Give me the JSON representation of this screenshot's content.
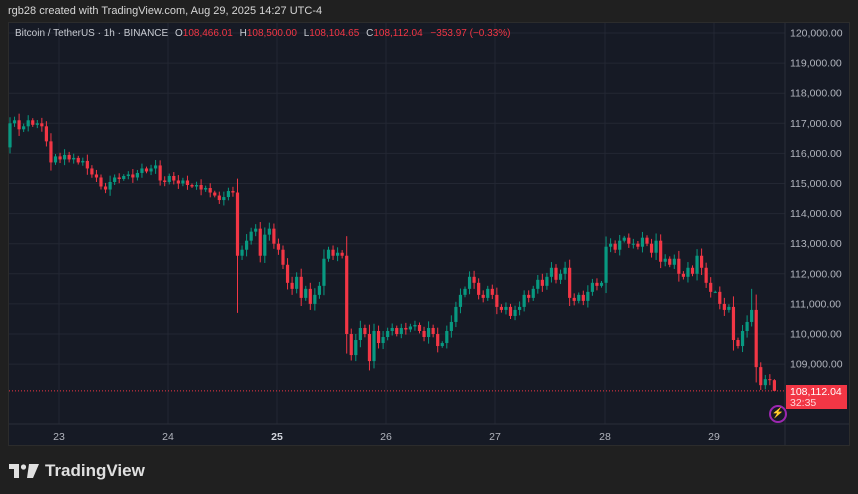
{
  "credit": "rgb28 created with TradingView.com, Aug 29, 2025 14:27 UTC-4",
  "legend": {
    "symbol": "Bitcoin / TetherUS · 1h · BINANCE",
    "o_label": "O",
    "o": "108,466.01",
    "h_label": "H",
    "h": "108,500.00",
    "l_label": "L",
    "l": "108,104.65",
    "c_label": "C",
    "c": "108,112.04",
    "change": "−353.97 (−0.33%)"
  },
  "price_tag": {
    "price": "108,112.04",
    "countdown": "32:35"
  },
  "logo": "TradingView",
  "colors": {
    "up": "#089981",
    "down": "#f23645",
    "background": "#161a25",
    "grid": "#232733",
    "text": "#b2b5be"
  },
  "chart_data": {
    "type": "candlestick",
    "interval": "1h",
    "y_ticks": [
      "120,000.00",
      "119,000.00",
      "118,000.00",
      "117,000.00",
      "116,000.00",
      "115,000.00",
      "114,000.00",
      "113,000.00",
      "112,000.00",
      "111,000.00",
      "110,000.00",
      "109,000.00"
    ],
    "y_tick_values": [
      120000,
      119000,
      118000,
      117000,
      116000,
      115000,
      114000,
      113000,
      112000,
      111000,
      110000,
      109000
    ],
    "x_ticks": [
      {
        "label": "23",
        "bold": false
      },
      {
        "label": "24",
        "bold": false
      },
      {
        "label": "25",
        "bold": true
      },
      {
        "label": "26",
        "bold": false
      },
      {
        "label": "27",
        "bold": false
      },
      {
        "label": "28",
        "bold": false
      },
      {
        "label": "29",
        "bold": false
      }
    ],
    "grid": true,
    "first_open": 116200,
    "closes": [
      117000,
      117100,
      116800,
      116900,
      117100,
      116950,
      117000,
      116900,
      116400,
      115700,
      115900,
      115800,
      115950,
      115800,
      115850,
      115700,
      115750,
      115500,
      115300,
      115200,
      114900,
      114800,
      115050,
      115200,
      115150,
      115250,
      115300,
      115200,
      115350,
      115500,
      115400,
      115500,
      115600,
      115100,
      115050,
      115250,
      115100,
      115000,
      115100,
      114950,
      114900,
      114950,
      114800,
      114850,
      114700,
      114600,
      114450,
      114550,
      114750,
      114700,
      112600,
      112800,
      113100,
      113400,
      113500,
      112600,
      113300,
      113500,
      113000,
      112800,
      112300,
      111700,
      111500,
      111900,
      111200,
      111500,
      111000,
      111300,
      111600,
      112500,
      112800,
      112600,
      112700,
      112600,
      110000,
      109300,
      109800,
      110200,
      110000,
      109100,
      110100,
      109700,
      109900,
      110100,
      110200,
      110000,
      110200,
      110150,
      110250,
      110300,
      110100,
      109900,
      110200,
      110000,
      109600,
      109700,
      110100,
      110400,
      110900,
      111300,
      111500,
      111900,
      111700,
      111300,
      111200,
      111500,
      111300,
      110900,
      110800,
      110900,
      110600,
      110800,
      110900,
      111300,
      111200,
      111500,
      111800,
      111600,
      111900,
      112200,
      111800,
      112000,
      112200,
      111200,
      111100,
      111300,
      111100,
      111400,
      111700,
      111600,
      111700,
      112900,
      113000,
      112800,
      113100,
      113200,
      113000,
      113000,
      112900,
      113200,
      113000,
      112700,
      113100,
      112400,
      112500,
      112300,
      112500,
      112000,
      111900,
      112200,
      112000,
      112600,
      112200,
      111700,
      111400,
      111400,
      111000,
      110800,
      110900,
      109800,
      109600,
      110100,
      110400,
      110800,
      108900,
      108300,
      108500,
      108466.01,
      108112.04
    ],
    "wick_extremes": [
      {
        "index": 50,
        "low": 110700
      },
      {
        "index": 163,
        "high": 111500
      },
      {
        "index": 168,
        "high": 108500,
        "low": 108104.65
      }
    ],
    "last_price": 108112.04
  }
}
